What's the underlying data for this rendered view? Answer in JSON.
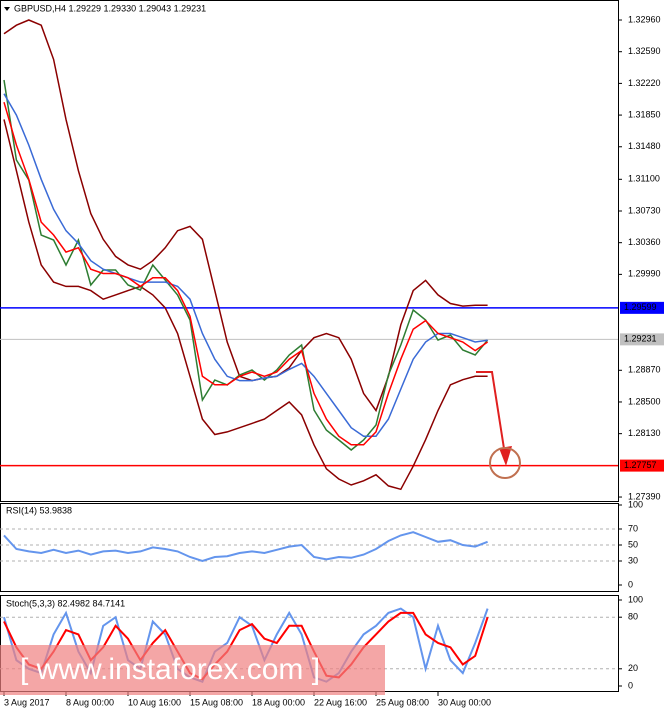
{
  "chart_data": [
    {
      "type": "line",
      "title": "GBPUSD,H4  1.29229 1.29330 1.29043 1.29231",
      "categories": [
        "3 Aug 2017",
        null,
        null,
        null,
        null,
        "8 Aug 00:00",
        null,
        null,
        null,
        null,
        "10 Aug 16:00",
        null,
        null,
        null,
        null,
        "15 Aug 08:00",
        null,
        null,
        null,
        null,
        "18 Aug 00:00",
        null,
        null,
        null,
        null,
        "22 Aug 16:00",
        null,
        null,
        null,
        null,
        "25 Aug 08:00",
        null,
        null,
        null,
        null,
        "30 Aug 00:00",
        null,
        null,
        null,
        null
      ],
      "series": [
        {
          "color": "#8b0000",
          "values": [
            1.328,
            1.329,
            1.3296,
            1.329,
            1.325,
            1.318,
            1.312,
            1.307,
            1.304,
            1.302,
            1.301,
            1.3005,
            1.3015,
            1.303,
            1.305,
            1.3055,
            1.304,
            1.298,
            1.292,
            1.288,
            1.2875,
            1.2878,
            1.288,
            1.289,
            1.291,
            1.2925,
            1.293,
            1.2925,
            1.29,
            1.286,
            1.284,
            1.288,
            1.294,
            1.298,
            1.2992,
            1.2975,
            1.2965,
            1.2962,
            1.2963,
            1.2963
          ]
        },
        {
          "color": "#8b0000",
          "values": [
            1.318,
            1.312,
            1.306,
            1.301,
            1.299,
            1.2985,
            1.2985,
            1.298,
            1.297,
            1.2975,
            1.298,
            1.2985,
            1.2975,
            1.296,
            1.293,
            1.288,
            1.283,
            1.2812,
            1.2815,
            1.282,
            1.2825,
            1.283,
            1.284,
            1.285,
            1.2835,
            1.28,
            1.2772,
            1.276,
            1.2753,
            1.2758,
            1.2765,
            1.2752,
            1.2748,
            1.2775,
            1.2806,
            1.284,
            1.287,
            1.2876,
            1.288,
            1.288
          ]
        },
        {
          "color": "#2e7d32",
          "values": [
            1.32259,
            1.31325,
            1.31092,
            1.30449,
            1.30391,
            1.30099,
            1.30391,
            1.29866,
            1.30041,
            1.30041,
            1.29866,
            1.29807,
            1.30099,
            1.29924,
            1.29749,
            1.29457,
            1.28523,
            1.28756,
            1.28698,
            1.28815,
            1.28873,
            1.28756,
            1.28873,
            1.29048,
            1.29165,
            1.28406,
            1.28172,
            1.28056,
            1.27939,
            1.28056,
            1.28231,
            1.28815,
            1.29165,
            1.29574,
            1.29457,
            1.29223,
            1.29282,
            1.29107,
            1.29048,
            1.29223
          ]
        },
        {
          "color": "#3a6ad6",
          "values": [
            1.321,
            1.3185,
            1.315,
            1.311,
            1.3075,
            1.305,
            1.3035,
            1.3015,
            1.3005,
            1.3,
            1.2995,
            1.299,
            1.299,
            1.299,
            1.2985,
            1.297,
            1.293,
            1.29,
            1.288,
            1.2875,
            1.2875,
            1.2878,
            1.288,
            1.2888,
            1.2895,
            1.288,
            1.286,
            1.284,
            1.282,
            1.281,
            1.281,
            1.283,
            1.2865,
            1.29,
            1.292,
            1.293,
            1.293,
            1.2925,
            1.292,
            1.2922
          ]
        },
        {
          "color": "#ff0000",
          "values": [
            1.32,
            1.315,
            1.311,
            1.306,
            1.3045,
            1.3025,
            1.303,
            1.3005,
            1.3,
            1.3,
            1.2995,
            1.2985,
            1.2995,
            1.2995,
            1.298,
            1.295,
            1.288,
            1.287,
            1.287,
            1.288,
            1.2885,
            1.288,
            1.2885,
            1.29,
            1.291,
            1.286,
            1.283,
            1.281,
            1.28,
            1.28,
            1.2815,
            1.286,
            1.29,
            1.2935,
            1.2945,
            1.293,
            1.2925,
            1.292,
            1.291,
            1.292
          ]
        }
      ],
      "ylim": [
        1.27332,
        1.33147
      ],
      "yticks": [
        {
          "value": 1.3296,
          "label": "1.32960"
        },
        {
          "value": 1.3259,
          "label": "1.32590"
        },
        {
          "value": 1.3222,
          "label": "1.32220"
        },
        {
          "value": 1.3185,
          "label": "1.31850"
        },
        {
          "value": 1.3148,
          "label": "1.31480"
        },
        {
          "value": 1.311,
          "label": "1.31100"
        },
        {
          "value": 1.3073,
          "label": "1.30730"
        },
        {
          "value": 1.3036,
          "label": "1.30360"
        },
        {
          "value": 1.2999,
          "label": "1.29990"
        },
        {
          "value": 1.2887,
          "label": "1.28870"
        },
        {
          "value": 1.285,
          "label": "1.28500"
        },
        {
          "value": 1.2813,
          "label": "1.28130"
        },
        {
          "value": 1.2739,
          "label": "1.27390"
        }
      ],
      "hlines": [
        {
          "value": 1.29599,
          "color": "#0000ff",
          "text_color": "#ffffff"
        },
        {
          "value": 1.29231,
          "color": "#c0c0c0",
          "text_color": "#000000"
        },
        {
          "value": 1.27757,
          "color": "#ff0000",
          "text_color": "#ffffff"
        }
      ],
      "grid": false
    },
    {
      "type": "line",
      "title": "RSI(14) 53.9838",
      "series": [
        {
          "color": "#6495ed",
          "values": [
            62,
            45,
            42,
            40,
            44,
            40,
            43,
            38,
            42,
            43,
            40,
            42,
            47,
            45,
            42,
            35,
            30,
            35,
            36,
            40,
            42,
            40,
            44,
            48,
            50,
            35,
            32,
            35,
            34,
            38,
            45,
            55,
            62,
            66,
            60,
            54,
            56,
            50,
            48,
            54
          ]
        }
      ],
      "ylim": [
        0,
        100
      ],
      "yticks": [
        0,
        30,
        50,
        70,
        100
      ],
      "levels": [
        30,
        50,
        70
      ]
    },
    {
      "type": "line",
      "title": "Stoch(5,3,3) 82.4982 84.7141",
      "series": [
        {
          "color": "#6495ed",
          "values": [
            80,
            30,
            20,
            15,
            60,
            85,
            40,
            15,
            70,
            80,
            30,
            20,
            75,
            60,
            20,
            10,
            5,
            40,
            50,
            80,
            70,
            30,
            60,
            85,
            60,
            10,
            5,
            15,
            40,
            60,
            70,
            85,
            90,
            80,
            20,
            70,
            30,
            15,
            50,
            90
          ]
        },
        {
          "color": "#ff0000",
          "values": [
            75,
            45,
            25,
            20,
            40,
            65,
            60,
            30,
            45,
            70,
            55,
            30,
            50,
            65,
            40,
            15,
            8,
            25,
            40,
            65,
            72,
            55,
            50,
            70,
            70,
            40,
            12,
            10,
            25,
            45,
            60,
            75,
            85,
            85,
            60,
            50,
            45,
            25,
            35,
            80
          ]
        }
      ],
      "ylim": [
        0,
        100
      ],
      "yticks": [
        0,
        20,
        80,
        100
      ],
      "levels": [
        20,
        80
      ]
    }
  ],
  "watermark": "[ www.instaforex.com ]"
}
